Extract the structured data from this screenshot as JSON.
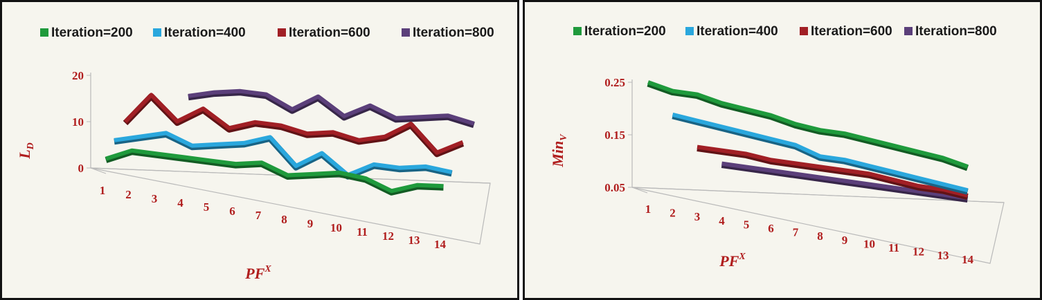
{
  "chart_data": [
    {
      "type": "line",
      "id": "left",
      "title": "",
      "xlabel": "PF",
      "xlabel_sup": "X",
      "ylabel": "L",
      "ylabel_sub": "D",
      "ylim": [
        0,
        20
      ],
      "yticks": [
        "0",
        "10",
        "20"
      ],
      "categories": [
        "1",
        "2",
        "3",
        "4",
        "5",
        "6",
        "7",
        "8",
        "9",
        "10",
        "11",
        "12",
        "13",
        "14"
      ],
      "legend_position": "top",
      "series": [
        {
          "name": "Iteration=200",
          "color": "#1f9a3c",
          "values": [
            2,
            4,
            3.5,
            3,
            2.5,
            2,
            2.5,
            0,
            0.5,
            1,
            0,
            -2.5,
            -1,
            -1
          ]
        },
        {
          "name": "Iteration=400",
          "color": "#2aa7dd",
          "values": [
            6,
            7,
            8,
            5.5,
            6,
            6.5,
            8,
            2,
            5,
            0.5,
            3,
            2.5,
            3,
            2
          ]
        },
        {
          "name": "Iteration=600",
          "color": "#a11f25",
          "values": [
            10,
            16,
            10.5,
            13.5,
            9.5,
            11,
            10.5,
            9,
            9.5,
            8,
            9,
            12,
            6,
            8.5
          ]
        },
        {
          "name": "Iteration=800",
          "color": "#5b3f7a",
          "values": [
            null,
            null,
            16,
            17,
            17.5,
            17,
            14,
            17,
            13,
            15.5,
            13,
            13.5,
            14,
            12.5
          ]
        }
      ]
    },
    {
      "type": "line",
      "id": "right",
      "title": "",
      "xlabel": "PF",
      "xlabel_sup": "X",
      "ylabel": "Min",
      "ylabel_sub": "V",
      "ylim": [
        0.05,
        0.25
      ],
      "yticks": [
        "0.05",
        "0.15",
        "0.25"
      ],
      "categories": [
        "1",
        "2",
        "3",
        "4",
        "5",
        "6",
        "7",
        "8",
        "9",
        "10",
        "11",
        "12",
        "13",
        "14"
      ],
      "legend_position": "top",
      "series": [
        {
          "name": "Iteration=200",
          "color": "#1f9a3c",
          "values": [
            0.25,
            0.235,
            0.23,
            0.215,
            0.205,
            0.195,
            0.18,
            0.17,
            0.165,
            0.155,
            0.145,
            0.135,
            0.125,
            0.11
          ]
        },
        {
          "name": "Iteration=400",
          "color": "#2aa7dd",
          "values": [
            null,
            0.19,
            0.18,
            0.17,
            0.16,
            0.15,
            0.14,
            0.12,
            0.115,
            0.105,
            0.095,
            0.085,
            0.075,
            0.065
          ]
        },
        {
          "name": "Iteration=600",
          "color": "#a11f25",
          "values": [
            null,
            null,
            0.13,
            0.125,
            0.12,
            0.11,
            0.105,
            0.1,
            0.095,
            0.09,
            0.08,
            0.07,
            0.065,
            0.055
          ]
        },
        {
          "name": "Iteration=800",
          "color": "#5b3f7a",
          "values": [
            null,
            null,
            null,
            0.1,
            0.095,
            0.09,
            0.085,
            0.08,
            0.075,
            0.07,
            0.065,
            0.06,
            0.055,
            0.05
          ]
        }
      ]
    }
  ]
}
